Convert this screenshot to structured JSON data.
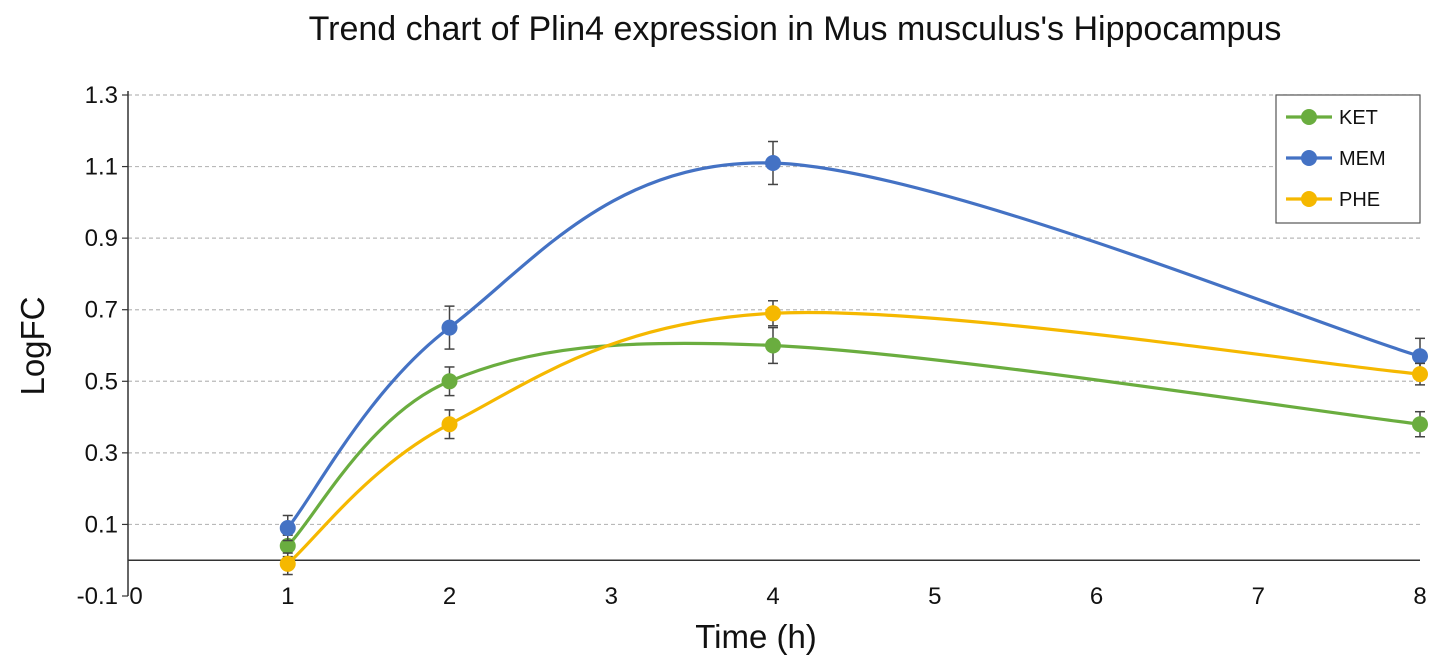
{
  "chart_data": {
    "type": "line",
    "title": "Trend chart of Plin4 expression in Mus musculus's Hippocampus",
    "xlabel": "Time (h)",
    "ylabel": "LogFC",
    "xlim": [
      0,
      8
    ],
    "ylim": [
      -0.1,
      1.3
    ],
    "x_ticks": [
      0,
      1,
      2,
      3,
      4,
      5,
      6,
      7,
      8
    ],
    "y_ticks": [
      -0.1,
      0.1,
      0.3,
      0.5,
      0.7,
      0.9,
      1.1,
      1.3
    ],
    "y_tick_labels": [
      "-0.1",
      "0.1",
      "0.3",
      "0.5",
      "0.7",
      "0.9",
      "1.1",
      "1.3"
    ],
    "grid": "horizontal dashed",
    "legend_position": "top-right",
    "x": [
      1,
      2,
      4,
      8
    ],
    "series": [
      {
        "name": "KET",
        "color": "#6aad3f",
        "values": [
          0.04,
          0.5,
          0.6,
          0.38
        ],
        "errors": [
          0.03,
          0.04,
          0.05,
          0.035
        ]
      },
      {
        "name": "MEM",
        "color": "#4472c4",
        "values": [
          0.09,
          0.65,
          1.11,
          0.57
        ],
        "errors": [
          0.035,
          0.06,
          0.06,
          0.05
        ]
      },
      {
        "name": "PHE",
        "color": "#f5b800",
        "values": [
          -0.01,
          0.38,
          0.69,
          0.52
        ],
        "errors": [
          0.03,
          0.04,
          0.035,
          0.03
        ]
      }
    ]
  }
}
